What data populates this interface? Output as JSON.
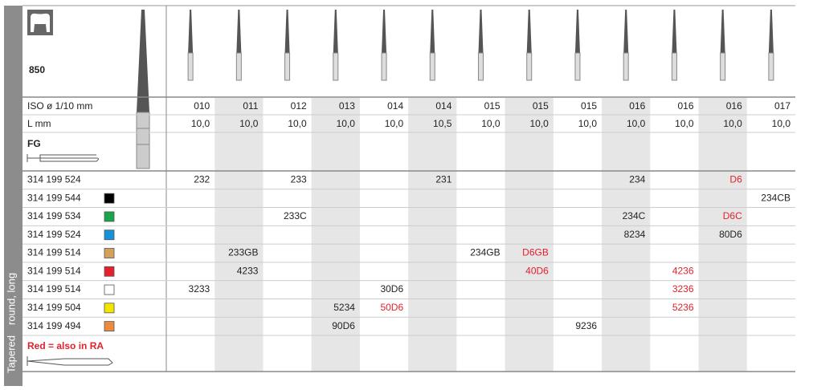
{
  "side_label": [
    "Tapered",
    "round, long"
  ],
  "header": {
    "product": "850",
    "iso_label": "ISO ø 1/10 mm",
    "l_label": "L mm",
    "fg_label": "FG"
  },
  "table": {
    "iso": [
      "010",
      "011",
      "012",
      "013",
      "014",
      "014",
      "015",
      "015",
      "015",
      "016",
      "016",
      "016",
      "017"
    ],
    "length": [
      "10,0",
      "10,0",
      "10,0",
      "10,0",
      "10,0",
      "10,5",
      "10,0",
      "10,0",
      "10,0",
      "10,0",
      "10,0",
      "10,0",
      "10,0"
    ],
    "rows": [
      {
        "code": "314 199 524",
        "swatch": null,
        "cells": [
          "232",
          null,
          "233",
          null,
          null,
          "231",
          null,
          null,
          null,
          "234",
          null,
          "D6",
          null
        ],
        "red": [
          11
        ]
      },
      {
        "code": "314 199 544",
        "swatch": "#000000",
        "cells": [
          null,
          null,
          null,
          null,
          null,
          null,
          null,
          null,
          null,
          null,
          null,
          null,
          "234CB"
        ],
        "red": []
      },
      {
        "code": "314 199 534",
        "swatch": "#1aa54a",
        "cells": [
          null,
          null,
          "233C",
          null,
          null,
          null,
          null,
          null,
          null,
          "234C",
          null,
          "D6C",
          null
        ],
        "red": [
          11
        ]
      },
      {
        "code": "314 199 524",
        "swatch": "#1592d8",
        "cells": [
          null,
          null,
          null,
          null,
          null,
          null,
          null,
          null,
          null,
          "8234",
          null,
          "80D6",
          null
        ],
        "red": []
      },
      {
        "code": "314 199 514",
        "swatch": "#d4a15a",
        "cells": [
          null,
          "233GB",
          null,
          null,
          null,
          null,
          "234GB",
          "D6GB",
          null,
          null,
          null,
          null,
          null
        ],
        "red": [
          7
        ]
      },
      {
        "code": "314 199 514",
        "swatch": "#e3202b",
        "cells": [
          null,
          "4233",
          null,
          null,
          null,
          null,
          null,
          "40D6",
          null,
          null,
          "4236",
          null,
          null
        ],
        "red": [
          7,
          10
        ]
      },
      {
        "code": "314 199 514",
        "swatch": "#ffffff",
        "cells": [
          "3233",
          null,
          null,
          null,
          "30D6",
          null,
          null,
          null,
          null,
          null,
          "3236",
          null,
          null
        ],
        "red": [
          10
        ]
      },
      {
        "code": "314 199 504",
        "swatch": "#f5e600",
        "cells": [
          null,
          null,
          null,
          "5234",
          "50D6",
          null,
          null,
          null,
          null,
          null,
          "5236",
          null,
          null
        ],
        "red": [
          4,
          10
        ]
      },
      {
        "code": "314 199 494",
        "swatch": "#ee8a3c",
        "cells": [
          null,
          null,
          null,
          "90D6",
          null,
          null,
          null,
          null,
          "9236",
          null,
          null,
          null,
          null
        ],
        "red": []
      }
    ]
  },
  "footer": {
    "note": "Red = also in RA"
  }
}
